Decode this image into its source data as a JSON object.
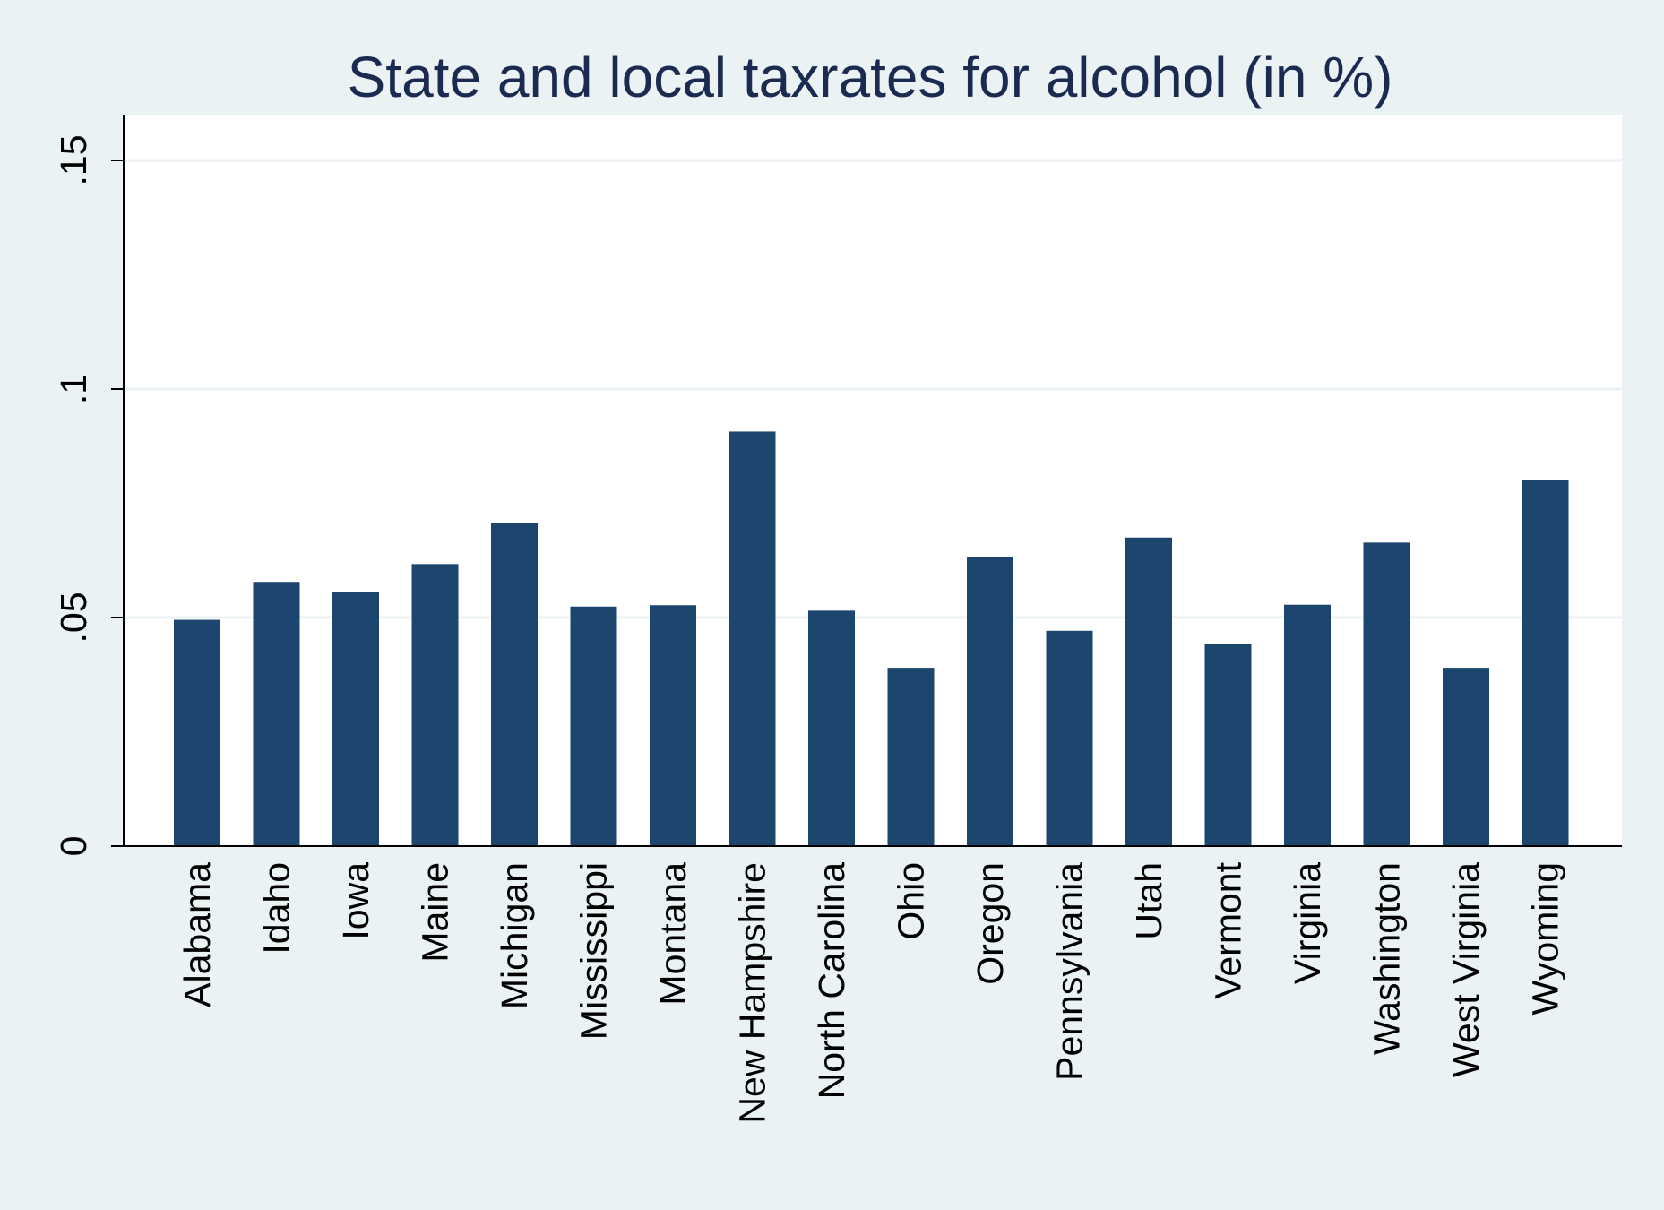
{
  "chart_data": {
    "type": "bar",
    "title": "State and local taxrates for alcohol (in %)",
    "xlabel": "",
    "ylabel": "",
    "categories": [
      "Alabama",
      "Idaho",
      "Iowa",
      "Maine",
      "Michigan",
      "Mississippi",
      "Montana",
      "New Hampshire",
      "North Carolina",
      "Ohio",
      "Oregon",
      "Pennsylvania",
      "Utah",
      "Vermont",
      "Virginia",
      "Washington",
      "West Virginia",
      "Wyoming"
    ],
    "values": [
      0.0495,
      0.0578,
      0.0555,
      0.0617,
      0.0707,
      0.0524,
      0.0527,
      0.0907,
      0.0515,
      0.039,
      0.0633,
      0.0471,
      0.0675,
      0.0442,
      0.0528,
      0.0664,
      0.039,
      0.0801
    ],
    "ylim": [
      0,
      0.16
    ],
    "yticks": [
      {
        "value": 0,
        "label": "0"
      },
      {
        "value": 0.05,
        "label": ".05"
      },
      {
        "value": 0.1,
        "label": ".1"
      },
      {
        "value": 0.15,
        "label": ".15"
      }
    ],
    "grid": true,
    "colors": {
      "bar": "#1c466e",
      "background": "#eaf2f3",
      "plot": "#ffffff",
      "grid": "#eaf2f3",
      "title": "#1a2a50"
    }
  }
}
